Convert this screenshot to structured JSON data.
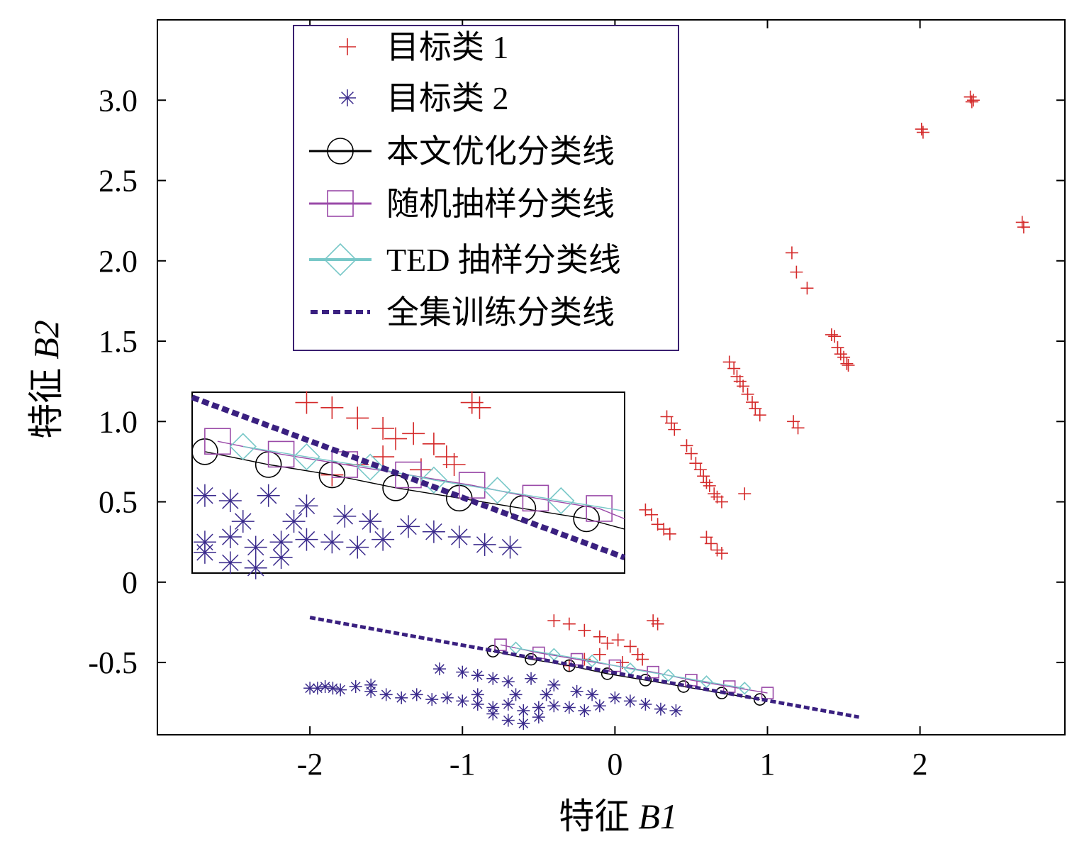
{
  "chart_data": {
    "type": "scatter",
    "title": "",
    "xlabel": "特征 B1",
    "xlabel_prefix": "特征",
    "xlabel_var": "B1",
    "ylabel": "特征 B2",
    "ylabel_prefix": "特征",
    "ylabel_var": "B2",
    "xlim": [
      -3.0,
      2.95
    ],
    "ylim": [
      -0.95,
      3.5
    ],
    "xticks": [
      {
        "value": -2,
        "label": "-2"
      },
      {
        "value": -1,
        "label": "-1"
      },
      {
        "value": 0,
        "label": "0"
      },
      {
        "value": 1,
        "label": "1"
      },
      {
        "value": 2,
        "label": "2"
      }
    ],
    "yticks": [
      {
        "value": -0.5,
        "label": "-0.5"
      },
      {
        "value": 0,
        "label": "0"
      },
      {
        "value": 0.5,
        "label": "0.5"
      },
      {
        "value": 1.0,
        "label": "1.0"
      },
      {
        "value": 1.5,
        "label": "1.5"
      },
      {
        "value": 2.0,
        "label": "2.0"
      },
      {
        "value": 2.5,
        "label": "2.5"
      },
      {
        "value": 3.0,
        "label": "3.0"
      }
    ],
    "grid": false,
    "legend_position": "top-center",
    "legend": [
      {
        "label": "目标类 1",
        "marker": "plus",
        "color": "#d42a2a"
      },
      {
        "label": "目标类 2",
        "marker": "star",
        "color": "#3a2a8c"
      },
      {
        "label": "本文优化分类线",
        "marker": "circle",
        "color": "#000000"
      },
      {
        "label": "随机抽样分类线",
        "marker": "square",
        "color": "#9a4aa8"
      },
      {
        "label": "TED 抽样分类线",
        "marker": "diamond",
        "color": "#78c8c8"
      },
      {
        "label": "全集训练分类线",
        "marker": "dashed",
        "color": "#3a2080"
      }
    ],
    "series": [
      {
        "name": "目标类 1",
        "type": "scatter",
        "marker": "plus",
        "color": "#d42a2a",
        "points": [
          [
            2.33,
            3.02
          ],
          [
            2.34,
            2.99
          ],
          [
            2.35,
            3.0
          ],
          [
            2.01,
            2.82
          ],
          [
            2.02,
            2.8
          ],
          [
            2.67,
            2.24
          ],
          [
            2.68,
            2.21
          ],
          [
            1.16,
            2.05
          ],
          [
            1.19,
            1.93
          ],
          [
            1.26,
            1.83
          ],
          [
            1.42,
            1.54
          ],
          [
            1.44,
            1.53
          ],
          [
            1.46,
            1.46
          ],
          [
            1.48,
            1.42
          ],
          [
            1.5,
            1.4
          ],
          [
            1.52,
            1.36
          ],
          [
            1.53,
            1.35
          ],
          [
            0.75,
            1.37
          ],
          [
            0.78,
            1.33
          ],
          [
            0.8,
            1.28
          ],
          [
            0.82,
            1.25
          ],
          [
            0.84,
            1.22
          ],
          [
            0.87,
            1.17
          ],
          [
            0.9,
            1.12
          ],
          [
            0.92,
            1.08
          ],
          [
            0.95,
            1.04
          ],
          [
            1.17,
            1.0
          ],
          [
            1.2,
            0.96
          ],
          [
            0.34,
            1.03
          ],
          [
            0.37,
            0.99
          ],
          [
            0.39,
            0.95
          ],
          [
            0.47,
            0.85
          ],
          [
            0.5,
            0.8
          ],
          [
            0.53,
            0.74
          ],
          [
            0.56,
            0.7
          ],
          [
            0.58,
            0.66
          ],
          [
            0.6,
            0.62
          ],
          [
            0.62,
            0.6
          ],
          [
            0.65,
            0.55
          ],
          [
            0.67,
            0.53
          ],
          [
            0.7,
            0.5
          ],
          [
            0.85,
            0.55
          ],
          [
            0.2,
            0.45
          ],
          [
            0.24,
            0.42
          ],
          [
            0.28,
            0.36
          ],
          [
            0.32,
            0.33
          ],
          [
            0.36,
            0.3
          ],
          [
            0.6,
            0.28
          ],
          [
            0.63,
            0.24
          ],
          [
            0.67,
            0.2
          ],
          [
            0.7,
            0.18
          ],
          [
            -0.4,
            -0.24
          ],
          [
            -0.3,
            -0.26
          ],
          [
            -0.2,
            -0.3
          ],
          [
            -0.1,
            -0.34
          ],
          [
            -0.05,
            -0.38
          ],
          [
            0.02,
            -0.36
          ],
          [
            0.1,
            -0.4
          ],
          [
            0.15,
            -0.45
          ],
          [
            0.25,
            -0.24
          ],
          [
            0.28,
            -0.26
          ],
          [
            -0.1,
            -0.45
          ],
          [
            -0.2,
            -0.48
          ],
          [
            -0.3,
            -0.52
          ],
          [
            0.05,
            -0.5
          ],
          [
            0.18,
            -0.48
          ]
        ]
      },
      {
        "name": "目标类 2",
        "type": "scatter",
        "marker": "star",
        "color": "#3a2a8c",
        "points": [
          [
            -2.0,
            -0.66
          ],
          [
            -1.95,
            -0.66
          ],
          [
            -1.9,
            -0.65
          ],
          [
            -1.85,
            -0.66
          ],
          [
            -1.8,
            -0.67
          ],
          [
            -1.7,
            -0.65
          ],
          [
            -1.6,
            -0.68
          ],
          [
            -1.5,
            -0.7
          ],
          [
            -1.4,
            -0.72
          ],
          [
            -1.3,
            -0.7
          ],
          [
            -1.2,
            -0.73
          ],
          [
            -1.1,
            -0.72
          ],
          [
            -1.0,
            -0.74
          ],
          [
            -0.9,
            -0.76
          ],
          [
            -0.8,
            -0.78
          ],
          [
            -0.7,
            -0.76
          ],
          [
            -0.6,
            -0.8
          ],
          [
            -0.5,
            -0.78
          ],
          [
            -0.4,
            -0.77
          ],
          [
            -0.3,
            -0.78
          ],
          [
            -0.2,
            -0.8
          ],
          [
            -0.1,
            -0.77
          ],
          [
            0.0,
            -0.72
          ],
          [
            0.1,
            -0.74
          ],
          [
            0.2,
            -0.76
          ],
          [
            0.3,
            -0.79
          ],
          [
            0.4,
            -0.8
          ],
          [
            -1.15,
            -0.54
          ],
          [
            -1.0,
            -0.56
          ],
          [
            -0.9,
            -0.58
          ],
          [
            -0.8,
            -0.6
          ],
          [
            -0.7,
            -0.62
          ],
          [
            -0.55,
            -0.6
          ],
          [
            -0.4,
            -0.64
          ],
          [
            -0.25,
            -0.68
          ],
          [
            -0.8,
            -0.82
          ],
          [
            -0.7,
            -0.86
          ],
          [
            -0.6,
            -0.88
          ],
          [
            -0.5,
            -0.84
          ],
          [
            -0.9,
            -0.7
          ],
          [
            -0.65,
            -0.7
          ],
          [
            -0.45,
            -0.7
          ],
          [
            -0.15,
            -0.7
          ],
          [
            -1.6,
            -0.64
          ]
        ]
      },
      {
        "name": "本文优化分类线",
        "type": "line",
        "marker": "circle",
        "color": "#000000",
        "x": [
          -0.8,
          -0.55,
          -0.3,
          -0.05,
          0.2,
          0.45,
          0.7,
          0.95
        ],
        "y": [
          -0.43,
          -0.48,
          -0.52,
          -0.57,
          -0.61,
          -0.65,
          -0.69,
          -0.73
        ]
      },
      {
        "name": "随机抽样分类线",
        "type": "line",
        "marker": "square",
        "color": "#9a4aa8",
        "x": [
          -0.75,
          -0.5,
          -0.25,
          0.0,
          0.25,
          0.5,
          0.75,
          1.0
        ],
        "y": [
          -0.39,
          -0.44,
          -0.48,
          -0.52,
          -0.56,
          -0.61,
          -0.65,
          -0.69
        ]
      },
      {
        "name": "TED 抽样分类线",
        "type": "line",
        "marker": "diamond",
        "color": "#78c8c8",
        "x": [
          -0.65,
          -0.4,
          -0.15,
          0.1,
          0.35,
          0.6,
          0.85
        ],
        "y": [
          -0.41,
          -0.45,
          -0.49,
          -0.54,
          -0.58,
          -0.62,
          -0.66
        ]
      },
      {
        "name": "全集训练分类线",
        "type": "line",
        "marker": "dashed",
        "color": "#3a2080",
        "x": [
          -2.0,
          1.6
        ],
        "y": [
          -0.22,
          -0.84
        ]
      }
    ]
  }
}
